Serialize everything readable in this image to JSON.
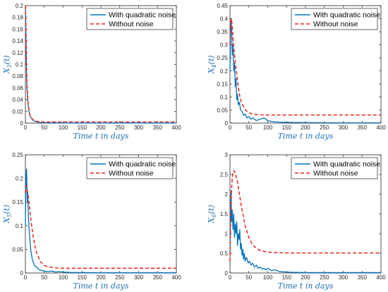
{
  "colors": {
    "noise_line": "#0072BD",
    "no_noise_line": "#E8261F",
    "axis_label": "#1F6FB5",
    "axis": "#262626"
  },
  "chart_data": [
    {
      "type": "line",
      "id": "x3",
      "ylabel": "X_3(t)",
      "ylabel_main": "X",
      "ylabel_sub": "3",
      "ylabel_tail": "(t)",
      "xlabel": "Time t in days",
      "xlim": [
        0,
        400
      ],
      "ylim": [
        0,
        0.2
      ],
      "xticks": [
        0,
        50,
        100,
        150,
        200,
        250,
        300,
        350,
        400
      ],
      "yticks": [
        0,
        0.02,
        0.04,
        0.06,
        0.08,
        0.1,
        0.12,
        0.14,
        0.16,
        0.18,
        0.2
      ],
      "ytick_labels": [
        "0",
        "0.02",
        "0.04",
        "0.06",
        "0.08",
        "0.1",
        "0.12",
        "0.14",
        "0.16",
        "0.18",
        "0.2"
      ],
      "legend": "top-right",
      "series": [
        {
          "name": "With quadratic noise",
          "style": "solid",
          "x": [
            0,
            1,
            2,
            3,
            4,
            6,
            8,
            10,
            12,
            15,
            20,
            25,
            30,
            40,
            60,
            100,
            200,
            300,
            400
          ],
          "y": [
            0.2,
            0.16,
            0.12,
            0.085,
            0.06,
            0.04,
            0.028,
            0.019,
            0.013,
            0.009,
            0.005,
            0.003,
            0.002,
            0.001,
            0.0005,
            0.0003,
            0.0002,
            0.0002,
            0.0002
          ]
        },
        {
          "name": "Without noise",
          "style": "dashed",
          "x": [
            0,
            1,
            2,
            3,
            4,
            6,
            8,
            10,
            12,
            15,
            20,
            25,
            30,
            40,
            60,
            100,
            200,
            300,
            400
          ],
          "y": [
            0.2,
            0.18,
            0.14,
            0.1,
            0.07,
            0.045,
            0.03,
            0.02,
            0.014,
            0.009,
            0.006,
            0.004,
            0.003,
            0.002,
            0.002,
            0.002,
            0.002,
            0.002,
            0.002
          ]
        }
      ]
    },
    {
      "type": "line",
      "id": "x4",
      "ylabel": "X_4(t)",
      "ylabel_main": "X",
      "ylabel_sub": "4",
      "ylabel_tail": "(t)",
      "xlabel": "Time t in days",
      "xlim": [
        0,
        400
      ],
      "ylim": [
        0,
        0.45
      ],
      "xticks": [
        0,
        50,
        100,
        150,
        200,
        250,
        300,
        350,
        400
      ],
      "yticks": [
        0,
        0.05,
        0.1,
        0.15,
        0.2,
        0.25,
        0.3,
        0.35,
        0.4,
        0.45
      ],
      "ytick_labels": [
        "0",
        "0.05",
        "0.1",
        "0.15",
        "0.2",
        "0.25",
        "0.3",
        "0.35",
        "0.4",
        "0.45"
      ],
      "legend": "top-right",
      "series": [
        {
          "name": "With quadratic noise",
          "style": "solid",
          "x": [
            0,
            2,
            3,
            5,
            6,
            8,
            10,
            12,
            14,
            16,
            18,
            20,
            22,
            25,
            28,
            32,
            36,
            40,
            45,
            50,
            55,
            60,
            70,
            80,
            90,
            100,
            110,
            130,
            150,
            200,
            300,
            400
          ],
          "y": [
            0.2,
            0.36,
            0.4,
            0.33,
            0.26,
            0.3,
            0.2,
            0.23,
            0.14,
            0.17,
            0.09,
            0.11,
            0.07,
            0.08,
            0.05,
            0.045,
            0.03,
            0.035,
            0.02,
            0.025,
            0.015,
            0.02,
            0.01,
            0.015,
            0.02,
            0.01,
            0.006,
            0.004,
            0.003,
            0.002,
            0.001,
            0.001
          ]
        },
        {
          "name": "Without noise",
          "style": "dashed",
          "x": [
            0,
            2,
            4,
            6,
            8,
            10,
            15,
            20,
            25,
            30,
            40,
            50,
            60,
            70,
            80,
            100,
            150,
            200,
            300,
            400
          ],
          "y": [
            0.3,
            0.39,
            0.4,
            0.37,
            0.33,
            0.29,
            0.22,
            0.16,
            0.11,
            0.08,
            0.052,
            0.04,
            0.035,
            0.033,
            0.032,
            0.031,
            0.031,
            0.031,
            0.031,
            0.031
          ]
        }
      ]
    },
    {
      "type": "line",
      "id": "x5",
      "ylabel": "X_5(t)",
      "ylabel_main": "X",
      "ylabel_sub": "5",
      "ylabel_tail": "(t)",
      "xlabel": "Time t in days",
      "xlim": [
        0,
        400
      ],
      "ylim": [
        0,
        0.25
      ],
      "xticks": [
        0,
        50,
        100,
        150,
        200,
        250,
        300,
        350,
        400
      ],
      "yticks": [
        0,
        0.05,
        0.1,
        0.15,
        0.2,
        0.25
      ],
      "ytick_labels": [
        "0",
        "0.05",
        "0.1",
        "0.15",
        "0.2",
        "0.25"
      ],
      "legend": "top-right",
      "series": [
        {
          "name": "With quadratic noise",
          "style": "solid",
          "x": [
            0,
            1,
            2,
            3,
            5,
            6,
            8,
            10,
            12,
            14,
            16,
            18,
            20,
            25,
            30,
            35,
            40,
            50,
            60,
            70,
            80,
            90,
            100,
            120,
            150,
            200,
            300,
            400
          ],
          "y": [
            0.1,
            0.17,
            0.21,
            0.22,
            0.15,
            0.17,
            0.12,
            0.09,
            0.07,
            0.05,
            0.04,
            0.03,
            0.025,
            0.015,
            0.012,
            0.008,
            0.006,
            0.004,
            0.003,
            0.004,
            0.002,
            0.003,
            0.002,
            0.001,
            0.001,
            0.0005,
            0.0005,
            0.0005
          ]
        },
        {
          "name": "Without noise",
          "style": "dashed",
          "x": [
            0,
            2,
            4,
            6,
            8,
            10,
            15,
            20,
            25,
            30,
            40,
            50,
            60,
            70,
            80,
            100,
            150,
            200,
            300,
            400
          ],
          "y": [
            0.17,
            0.185,
            0.18,
            0.17,
            0.16,
            0.145,
            0.11,
            0.08,
            0.058,
            0.042,
            0.024,
            0.016,
            0.013,
            0.012,
            0.011,
            0.01,
            0.01,
            0.01,
            0.01,
            0.01
          ]
        }
      ]
    },
    {
      "type": "line",
      "id": "x6",
      "ylabel": "X_6(t)",
      "ylabel_main": "X",
      "ylabel_sub": "6",
      "ylabel_tail": "(t)",
      "xlabel": "Time t in days",
      "xlim": [
        0,
        400
      ],
      "ylim": [
        0,
        3
      ],
      "xticks": [
        0,
        50,
        100,
        150,
        200,
        250,
        300,
        350,
        400
      ],
      "yticks": [
        0,
        0.5,
        1,
        1.5,
        2,
        2.5,
        3
      ],
      "ytick_labels": [
        "0",
        "0.5",
        "1",
        "1.5",
        "2",
        "2.5",
        "3"
      ],
      "legend": "top-right",
      "series": [
        {
          "name": "With quadratic noise",
          "style": "solid",
          "x": [
            0,
            2,
            3,
            4,
            6,
            8,
            10,
            12,
            14,
            16,
            18,
            20,
            22,
            24,
            26,
            28,
            30,
            32,
            34,
            36,
            38,
            40,
            44,
            48,
            52,
            56,
            60,
            65,
            70,
            75,
            80,
            85,
            90,
            95,
            100,
            110,
            120,
            130,
            140,
            160,
            200,
            300,
            400
          ],
          "y": [
            0.5,
            1.8,
            2.1,
            1.3,
            1.6,
            1.1,
            1.5,
            0.9,
            1.25,
            1.0,
            1.3,
            0.7,
            1.0,
            0.85,
            1.1,
            0.6,
            0.75,
            0.45,
            0.6,
            0.35,
            0.5,
            0.3,
            0.4,
            0.25,
            0.3,
            0.2,
            0.25,
            0.15,
            0.2,
            0.12,
            0.15,
            0.1,
            0.12,
            0.08,
            0.12,
            0.06,
            0.08,
            0.04,
            0.03,
            0.02,
            0.01,
            0.01,
            0.01
          ]
        },
        {
          "name": "Without noise",
          "style": "dashed",
          "x": [
            0,
            2,
            4,
            6,
            8,
            10,
            12,
            15,
            20,
            25,
            30,
            35,
            40,
            50,
            60,
            70,
            80,
            100,
            120,
            150,
            200,
            300,
            400
          ],
          "y": [
            0.3,
            1.5,
            2.1,
            2.4,
            2.55,
            2.6,
            2.58,
            2.5,
            2.3,
            2.0,
            1.7,
            1.45,
            1.2,
            0.9,
            0.72,
            0.62,
            0.57,
            0.53,
            0.52,
            0.51,
            0.51,
            0.51,
            0.51
          ]
        }
      ]
    }
  ]
}
